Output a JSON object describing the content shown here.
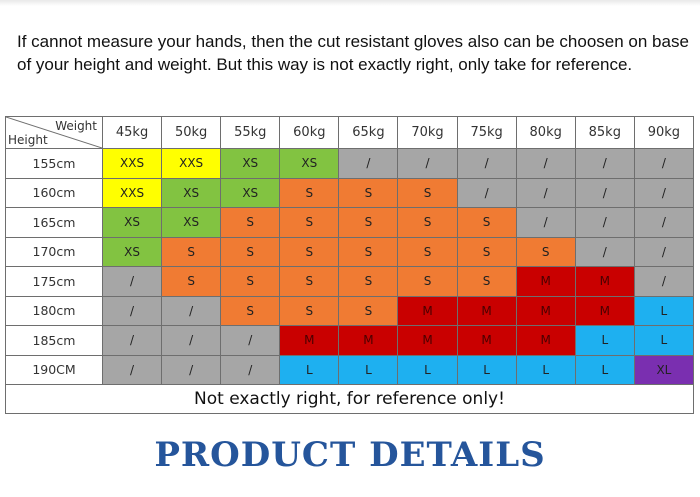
{
  "intro_text": "If cannot measure your hands, then the cut resistant gloves also can be choosen on base of your height and weight. But this way is not exactly right, only take for reference.",
  "corner": {
    "weight_label": "Weight",
    "height_label": "Height"
  },
  "weights": [
    "45kg",
    "50kg",
    "55kg",
    "60kg",
    "65kg",
    "70kg",
    "75kg",
    "80kg",
    "85kg",
    "90kg"
  ],
  "rows": [
    {
      "height": "155cm",
      "sizes": [
        "XXS",
        "XXS",
        "XS",
        "XS",
        "/",
        "/",
        "/",
        "/",
        "/",
        "/"
      ]
    },
    {
      "height": "160cm",
      "sizes": [
        "XXS",
        "XS",
        "XS",
        "S",
        "S",
        "S",
        "/",
        "/",
        "/",
        "/"
      ]
    },
    {
      "height": "165cm",
      "sizes": [
        "XS",
        "XS",
        "S",
        "S",
        "S",
        "S",
        "S",
        "/",
        "/",
        "/"
      ]
    },
    {
      "height": "170cm",
      "sizes": [
        "XS",
        "S",
        "S",
        "S",
        "S",
        "S",
        "S",
        "S",
        "/",
        "/"
      ]
    },
    {
      "height": "175cm",
      "sizes": [
        "/",
        "S",
        "S",
        "S",
        "S",
        "S",
        "S",
        "M",
        "M",
        "/"
      ]
    },
    {
      "height": "180cm",
      "sizes": [
        "/",
        "/",
        "S",
        "S",
        "S",
        "M",
        "M",
        "M",
        "M",
        "L"
      ]
    },
    {
      "height": "185cm",
      "sizes": [
        "/",
        "/",
        "/",
        "M",
        "M",
        "M",
        "M",
        "M",
        "L",
        "L"
      ]
    },
    {
      "height": "190CM",
      "sizes": [
        "/",
        "/",
        "/",
        "L",
        "L",
        "L",
        "L",
        "L",
        "L",
        "XL"
      ]
    }
  ],
  "size_colors": {
    "XXS": "#ffff00",
    "XS": "#82c341",
    "S": "#f07b33",
    "M": "#c90000",
    "L": "#1eb0f0",
    "XL": "#7a2fb0",
    "/": "#a6a6a6"
  },
  "footnote": "Not exactly right, for reference only!",
  "section_title": "PRODUCT DETAILS"
}
